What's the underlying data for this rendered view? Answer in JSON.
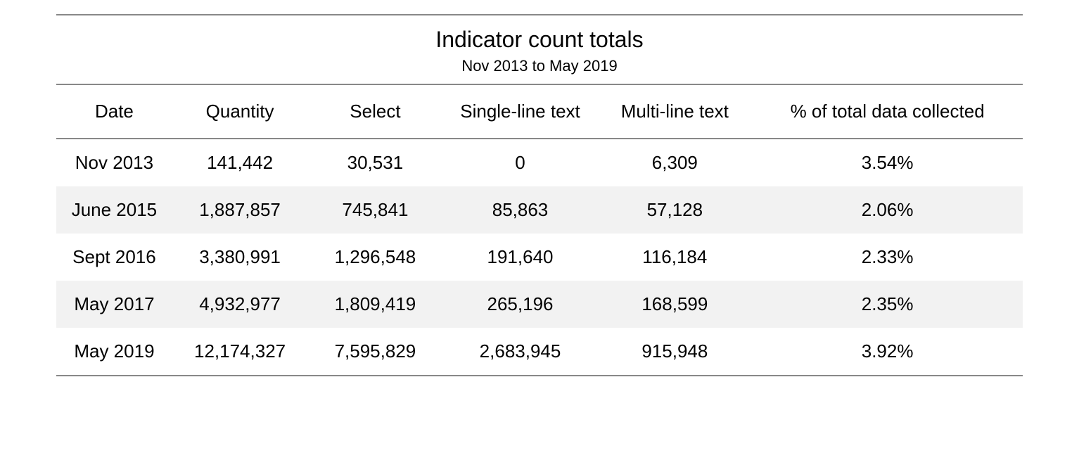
{
  "table": {
    "title": "Indicator count totals",
    "subtitle": "Nov 2013 to May 2019",
    "title_fontsize": 32,
    "subtitle_fontsize": 22,
    "header_fontsize": 26,
    "cell_fontsize": 26,
    "background_color": "#ffffff",
    "stripe_color": "#f2f2f2",
    "border_color": "#888888",
    "text_color": "#000000",
    "columns": [
      {
        "key": "date",
        "label": "Date",
        "width_pct": 12
      },
      {
        "key": "quantity",
        "label": "Quantity",
        "width_pct": 14
      },
      {
        "key": "select",
        "label": "Select",
        "width_pct": 14
      },
      {
        "key": "single_line_text",
        "label": "Single-line text",
        "width_pct": 16
      },
      {
        "key": "multi_line_text",
        "label": "Multi-line text",
        "width_pct": 16
      },
      {
        "key": "pct_total",
        "label": "% of total data collected",
        "width_pct": 28
      }
    ],
    "rows": [
      {
        "date": "Nov 2013",
        "quantity": "141,442",
        "select": "30,531",
        "single_line_text": "0",
        "multi_line_text": "6,309",
        "pct_total": "3.54%"
      },
      {
        "date": "June 2015",
        "quantity": "1,887,857",
        "select": "745,841",
        "single_line_text": "85,863",
        "multi_line_text": "57,128",
        "pct_total": "2.06%"
      },
      {
        "date": "Sept 2016",
        "quantity": "3,380,991",
        "select": "1,296,548",
        "single_line_text": "191,640",
        "multi_line_text": "116,184",
        "pct_total": "2.33%"
      },
      {
        "date": "May 2017",
        "quantity": "4,932,977",
        "select": "1,809,419",
        "single_line_text": "265,196",
        "multi_line_text": "168,599",
        "pct_total": "2.35%"
      },
      {
        "date": "May 2019",
        "quantity": "12,174,327",
        "select": "7,595,829",
        "single_line_text": "2,683,945",
        "multi_line_text": "915,948",
        "pct_total": "3.92%"
      }
    ]
  }
}
